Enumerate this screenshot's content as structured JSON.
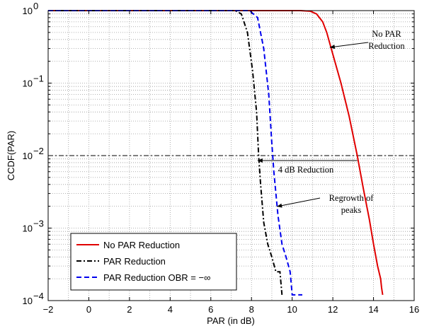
{
  "chart_data": {
    "type": "line",
    "title": "",
    "xlabel": "PAR (in dB)",
    "ylabel": "CCDF(PAR)",
    "xlim": [
      -2,
      16
    ],
    "ylim": [
      0.0001,
      1
    ],
    "y_scale": "log",
    "grid": "dotted",
    "x_ticks": [
      "−2",
      "0",
      "2",
      "4",
      "6",
      "8",
      "10",
      "12",
      "14",
      "16"
    ],
    "x_tick_values": [
      -2,
      0,
      2,
      4,
      6,
      8,
      10,
      12,
      14,
      16
    ],
    "y_ticks": [
      {
        "value": 1,
        "base": "10",
        "exp": "0"
      },
      {
        "value": 0.1,
        "base": "10",
        "exp": "−1"
      },
      {
        "value": 0.01,
        "base": "10",
        "exp": "−2"
      },
      {
        "value": 0.001,
        "base": "10",
        "exp": "−3"
      },
      {
        "value": 0.0001,
        "base": "10",
        "exp": "−4"
      }
    ],
    "reference_line": {
      "y": 0.01,
      "style": "dash-dot",
      "color": "#000000"
    },
    "legend_position": "bottom-left",
    "series": [
      {
        "name": "No PAR Reduction",
        "color": "#e00000",
        "style": "solid",
        "x": [
          -2,
          10.4,
          10.9,
          11.2,
          11.5,
          11.7,
          12.0,
          12.4,
          12.8,
          13.2,
          13.5,
          13.8,
          14.0,
          14.2,
          14.35,
          14.4,
          14.45
        ],
        "y": [
          1,
          1,
          0.98,
          0.9,
          0.7,
          0.5,
          0.25,
          0.1,
          0.035,
          0.01,
          0.0035,
          0.0013,
          0.0006,
          0.0003,
          0.0002,
          0.00015,
          0.00012
        ]
      },
      {
        "name": "PAR Reduction",
        "color": "#000000",
        "style": "dash-dot",
        "x": [
          -2,
          7.2,
          7.5,
          7.8,
          8.05,
          8.25,
          8.35,
          8.45,
          8.6,
          8.8,
          9.0,
          9.2,
          9.4,
          9.5
        ],
        "y": [
          1,
          1,
          0.9,
          0.5,
          0.15,
          0.04,
          0.01,
          0.004,
          0.0012,
          0.0006,
          0.0004,
          0.00025,
          0.00025,
          0.00012
        ]
      },
      {
        "name": "PAR Reduction OBR = −∞",
        "color": "#0000ee",
        "style": "dashed",
        "x": [
          -2,
          7.9,
          8.3,
          8.6,
          8.85,
          9.0,
          9.1,
          9.2,
          9.3,
          9.5,
          9.7,
          9.9,
          10.0,
          10.5
        ],
        "y": [
          1,
          1,
          0.8,
          0.3,
          0.07,
          0.015,
          0.006,
          0.003,
          0.0015,
          0.0006,
          0.0004,
          0.00025,
          0.00012,
          0.00012
        ]
      }
    ],
    "annotations": [
      {
        "lines": [
          "No PAR",
          "Reduction"
        ]
      },
      {
        "lines": [
          "4 dB Reduction"
        ]
      },
      {
        "lines": [
          "Regrowth of",
          "peaks"
        ]
      }
    ]
  }
}
